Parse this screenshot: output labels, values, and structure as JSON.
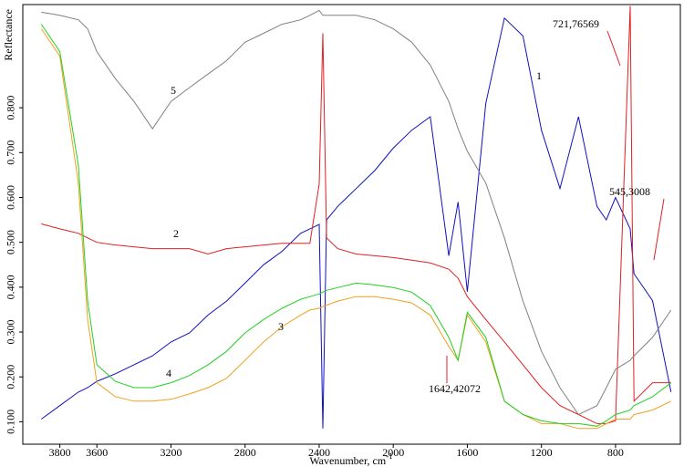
{
  "chart_data": {
    "type": "line",
    "y_label": "Reflectance",
    "x_label": "Wavenumber, cm",
    "x_label_sup": "-1",
    "x": [
      3900,
      3800,
      3700,
      3650,
      3600,
      3500,
      3400,
      3300,
      3200,
      3100,
      3000,
      2900,
      2800,
      2700,
      2600,
      2500,
      2450,
      2400,
      2380,
      2360,
      2300,
      2200,
      2100,
      2000,
      1900,
      1800,
      1700,
      1650,
      1600,
      1500,
      1400,
      1300,
      1200,
      1100,
      1000,
      900,
      850,
      800,
      721,
      700,
      600,
      500
    ],
    "series": [
      {
        "name": "1",
        "color": "#1010c0",
        "values": [
          0.106,
          0.136,
          0.166,
          0.176,
          0.19,
          0.207,
          0.227,
          0.247,
          0.278,
          0.298,
          0.338,
          0.369,
          0.409,
          0.45,
          0.48,
          0.52,
          0.53,
          0.54,
          0.085,
          0.55,
          0.58,
          0.62,
          0.66,
          0.71,
          0.75,
          0.78,
          0.47,
          0.59,
          0.39,
          0.81,
          1.0,
          0.96,
          0.75,
          0.62,
          0.78,
          0.58,
          0.55,
          0.6,
          0.53,
          0.43,
          0.37,
          0.166
        ]
      },
      {
        "name": "2",
        "color": "#e02020",
        "values": [
          0.541,
          0.53,
          0.52,
          0.51,
          0.5,
          0.494,
          0.49,
          0.486,
          0.486,
          0.486,
          0.474,
          0.486,
          0.49,
          0.494,
          0.498,
          0.498,
          0.498,
          0.63,
          0.966,
          0.51,
          0.486,
          0.474,
          0.47,
          0.466,
          0.46,
          0.454,
          0.44,
          0.42,
          0.379,
          0.328,
          0.278,
          0.227,
          0.176,
          0.136,
          0.116,
          0.096,
          0.096,
          0.102,
          1.027,
          0.146,
          0.187,
          0.187
        ]
      },
      {
        "name": "3",
        "color": "#f0a020",
        "values": [
          0.976,
          0.915,
          0.632,
          0.328,
          0.187,
          0.156,
          0.146,
          0.146,
          0.15,
          0.162,
          0.176,
          0.197,
          0.237,
          0.278,
          0.312,
          0.338,
          0.349,
          0.353,
          0.357,
          0.36,
          0.369,
          0.379,
          0.379,
          0.373,
          0.365,
          0.338,
          0.268,
          0.237,
          0.338,
          0.278,
          0.146,
          0.116,
          0.096,
          0.096,
          0.085,
          0.085,
          0.096,
          0.106,
          0.106,
          0.116,
          0.126,
          0.146
        ]
      },
      {
        "name": "4",
        "color": "#20d020",
        "values": [
          0.986,
          0.925,
          0.672,
          0.369,
          0.227,
          0.19,
          0.176,
          0.176,
          0.187,
          0.203,
          0.227,
          0.257,
          0.298,
          0.328,
          0.353,
          0.373,
          0.379,
          0.385,
          0.389,
          0.393,
          0.399,
          0.409,
          0.405,
          0.399,
          0.389,
          0.359,
          0.288,
          0.237,
          0.344,
          0.288,
          0.146,
          0.116,
          0.102,
          0.096,
          0.096,
          0.09,
          0.102,
          0.116,
          0.126,
          0.136,
          0.156,
          0.187
        ]
      },
      {
        "name": "5",
        "color": "#808080",
        "values": [
          1.013,
          1.006,
          0.996,
          0.976,
          0.925,
          0.865,
          0.814,
          0.753,
          0.814,
          0.845,
          0.875,
          0.905,
          0.946,
          0.966,
          0.986,
          0.996,
          1.006,
          1.017,
          1.006,
          1.006,
          1.006,
          1.006,
          0.996,
          0.976,
          0.946,
          0.895,
          0.814,
          0.753,
          0.703,
          0.632,
          0.51,
          0.369,
          0.257,
          0.176,
          0.116,
          0.136,
          0.176,
          0.217,
          0.237,
          0.247,
          0.288,
          0.349
        ]
      }
    ],
    "annotations": [
      "721,76569",
      "545,3008",
      "1642,42072"
    ],
    "xlim": [
      4000,
      450
    ],
    "ylim": [
      0.05,
      1.03
    ],
    "xticks": [
      3800,
      3600,
      3200,
      2800,
      2400,
      2000,
      1600,
      1200,
      800
    ],
    "yticks": [
      {
        "value": 0.1,
        "label": "0.100"
      },
      {
        "value": 0.2,
        "label": "0.200"
      },
      {
        "value": 0.3,
        "label": "0.300"
      },
      {
        "value": 0.4,
        "label": "0.400"
      },
      {
        "value": 0.5,
        "label": "0.500"
      },
      {
        "value": 0.6,
        "label": "0.600"
      },
      {
        "value": 0.7,
        "label": "0.700"
      },
      {
        "value": 0.8,
        "label": "0.800"
      }
    ]
  }
}
